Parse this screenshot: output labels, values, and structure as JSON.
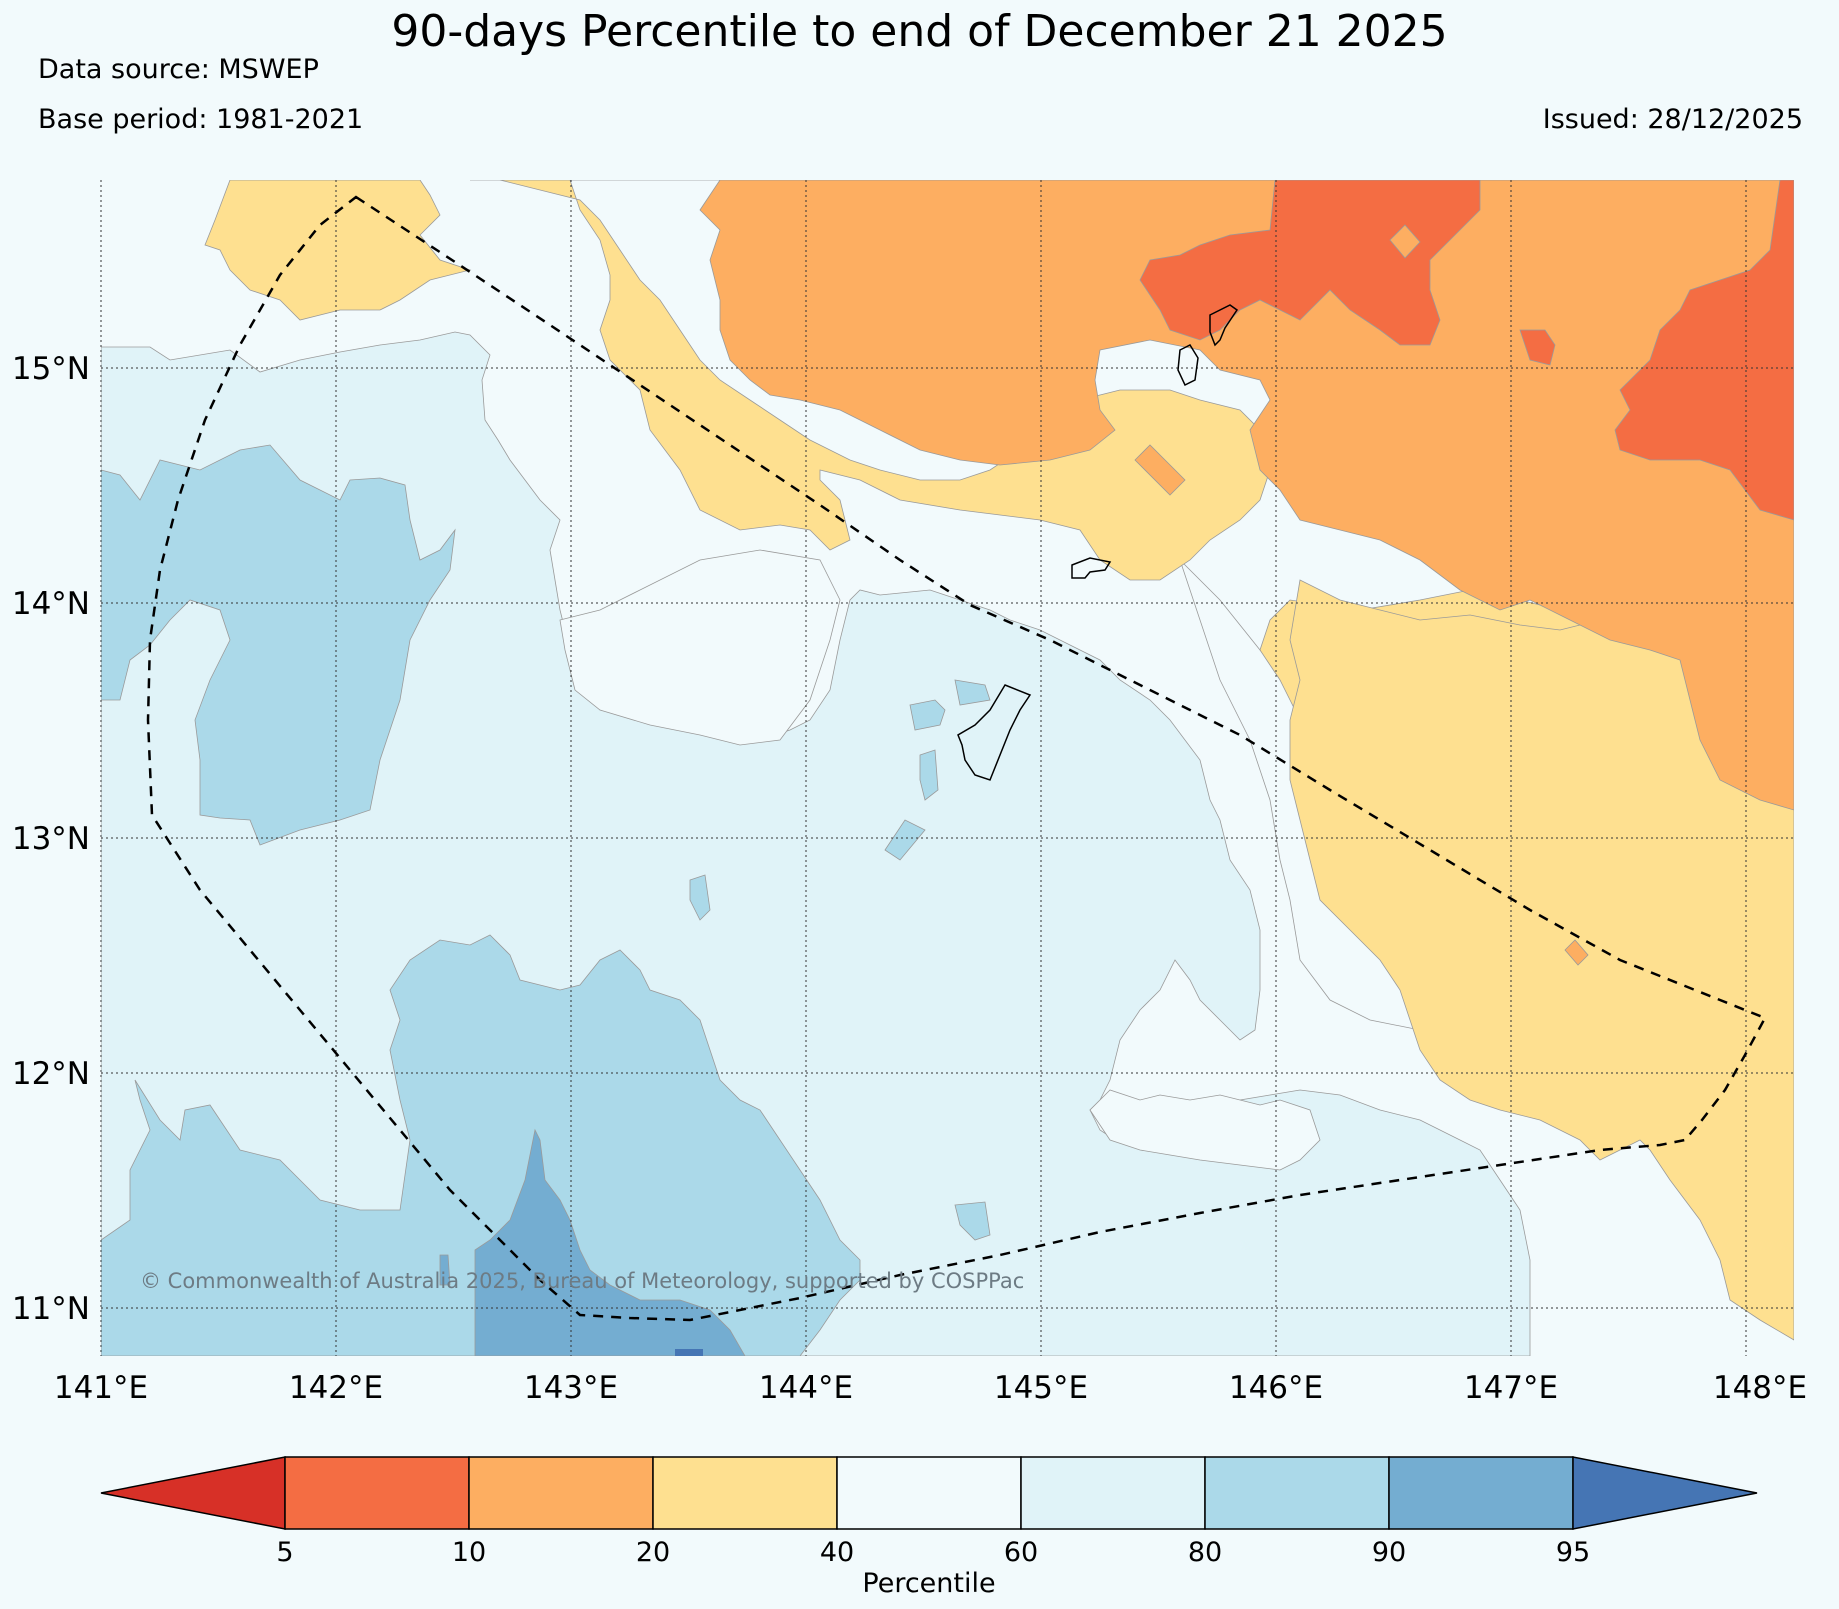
{
  "title": "90-days Percentile to end of December 21 2025",
  "data_source": "Data source: MSWEP",
  "base_period": "Base period: 1981-2021",
  "issued": "Issued: 28/12/2025",
  "copyright": "© Commonwealth of Australia 2025, Bureau of Meteorology, supported by COSPPac",
  "map": {
    "lon_range": [
      141.0,
      148.2
    ],
    "lat_range": [
      10.8,
      15.8
    ],
    "lon_ticks": [
      "141°E",
      "142°E",
      "143°E",
      "144°E",
      "145°E",
      "146°E",
      "147°E",
      "148°E"
    ],
    "lat_ticks": [
      "15°N",
      "14°N",
      "13°N",
      "12°N",
      "11°N"
    ]
  },
  "colorbar": {
    "label": "Percentile",
    "ticks": [
      "5",
      "10",
      "20",
      "40",
      "60",
      "80",
      "90",
      "95"
    ],
    "colors": {
      "below_5": "#d73027",
      "p5_10": "#f46d43",
      "p10_20": "#fdae61",
      "p20_40": "#fee090",
      "p40_60": "#f2fafc",
      "p60_80": "#e0f3f8",
      "p80_90": "#abd9e9",
      "p90_95": "#74add1",
      "above_95": "#4575b4"
    }
  }
}
